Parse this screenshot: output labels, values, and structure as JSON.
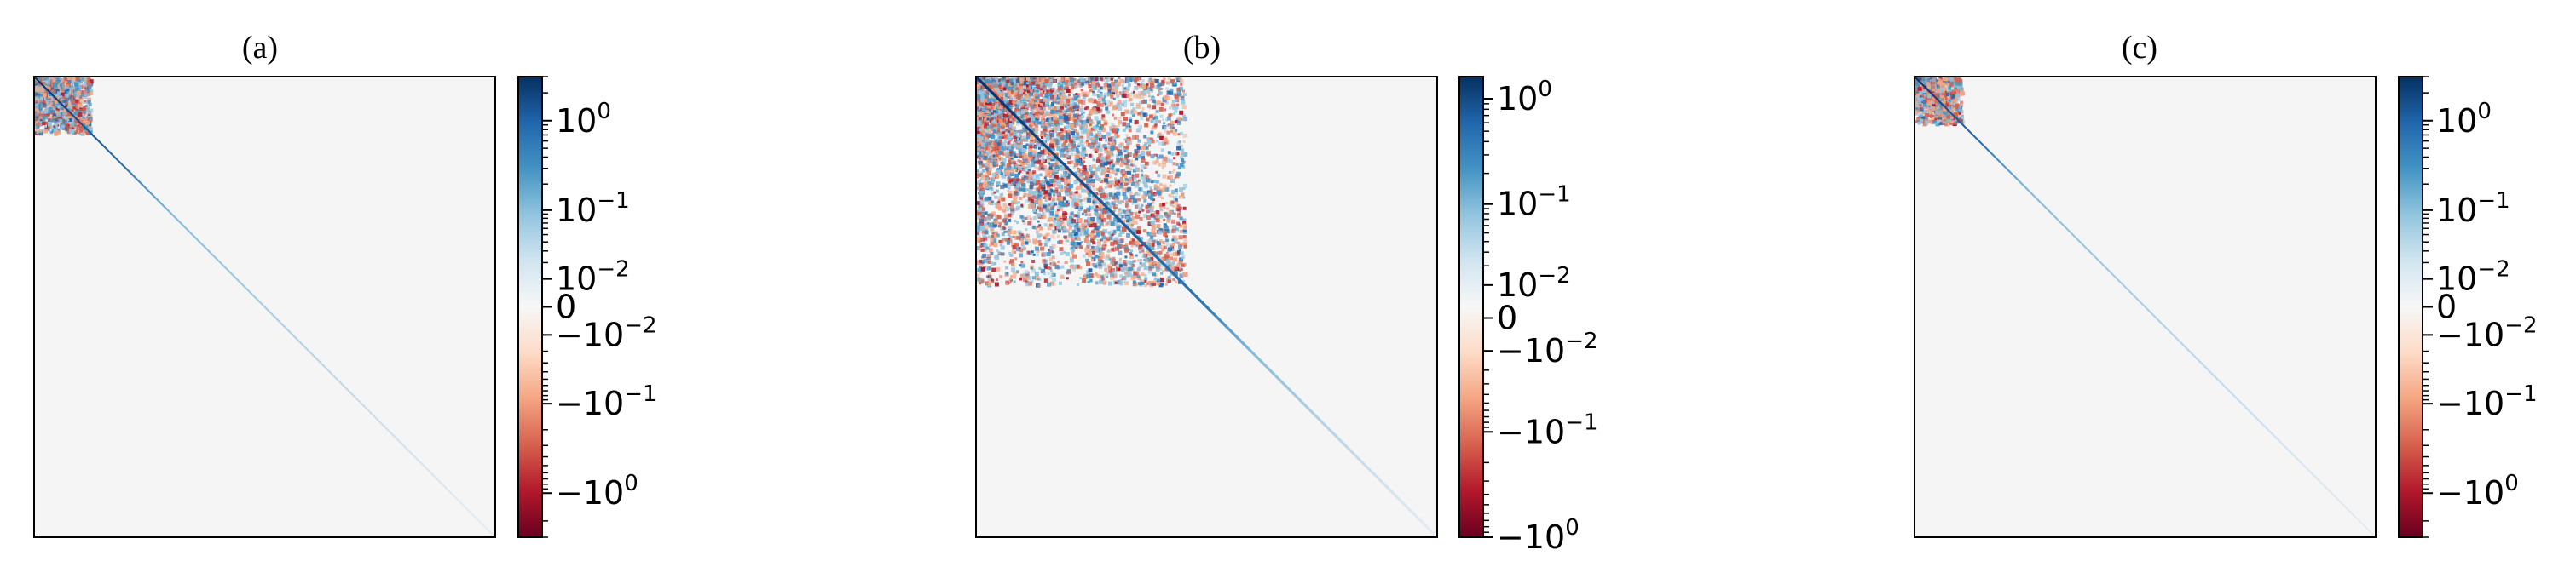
{
  "chart_data": [
    {
      "type": "heatmap",
      "title": "(a)",
      "xlabel": "",
      "ylabel": "",
      "x_ticks_shown": false,
      "y_ticks_shown": false,
      "color_scale": "symlog",
      "colormap": [
        "#67001f",
        "#b2182b",
        "#d6604d",
        "#f4a582",
        "#fddbc7",
        "#f7f7f7",
        "#d1e5f0",
        "#92c5de",
        "#4393c3",
        "#2166ac",
        "#053061"
      ],
      "colorbar_range": [
        -3.0,
        3.0
      ],
      "colorbar_ticks": [
        {
          "value": 1,
          "label": "10",
          "exp": "0"
        },
        {
          "value": 0.1,
          "label": "10",
          "exp": "−1"
        },
        {
          "value": 0.01,
          "label": "10",
          "exp": "−2"
        },
        {
          "value": 0,
          "label": "0",
          "exp": ""
        },
        {
          "value": -0.01,
          "label": "−10",
          "exp": "−2"
        },
        {
          "value": -0.1,
          "label": "−10",
          "exp": "−1"
        },
        {
          "value": -1,
          "label": "−10",
          "exp": "0"
        }
      ],
      "structure": "diagonal-dominant matrix; dense mixed-sign block in the top-left corner; diagonal fades toward bottom-right",
      "block_extent": 0.12,
      "diag_fade_start": 0.2
    },
    {
      "type": "heatmap",
      "title": "(b)",
      "xlabel": "",
      "ylabel": "",
      "x_ticks_shown": false,
      "y_ticks_shown": false,
      "color_scale": "symlog",
      "colormap": [
        "#67001f",
        "#b2182b",
        "#d6604d",
        "#f4a582",
        "#fddbc7",
        "#f7f7f7",
        "#d1e5f0",
        "#92c5de",
        "#4393c3",
        "#2166ac",
        "#053061"
      ],
      "colorbar_range": [
        -1.0,
        1.6
      ],
      "colorbar_ticks": [
        {
          "value": 1,
          "label": "10",
          "exp": "0"
        },
        {
          "value": 0.1,
          "label": "10",
          "exp": "−1"
        },
        {
          "value": 0.01,
          "label": "10",
          "exp": "−2"
        },
        {
          "value": 0,
          "label": "0",
          "exp": ""
        },
        {
          "value": -0.01,
          "label": "−10",
          "exp": "−2"
        },
        {
          "value": -0.1,
          "label": "−10",
          "exp": "−1"
        },
        {
          "value": -1,
          "label": "−10",
          "exp": "0"
        }
      ],
      "structure": "diagonal-dominant matrix; wide mixed-sign scattered region in top-left half; strong diagonal to about halfway then fades",
      "block_extent": 0.45,
      "diag_fade_start": 0.5
    },
    {
      "type": "heatmap",
      "title": "(c)",
      "xlabel": "",
      "ylabel": "",
      "x_ticks_shown": false,
      "y_ticks_shown": false,
      "color_scale": "symlog",
      "colormap": [
        "#67001f",
        "#b2182b",
        "#d6604d",
        "#f4a582",
        "#fddbc7",
        "#f7f7f7",
        "#d1e5f0",
        "#92c5de",
        "#4393c3",
        "#2166ac",
        "#053061"
      ],
      "colorbar_range": [
        -3.0,
        3.0
      ],
      "colorbar_ticks": [
        {
          "value": 1,
          "label": "10",
          "exp": "0"
        },
        {
          "value": 0.1,
          "label": "10",
          "exp": "−1"
        },
        {
          "value": 0.01,
          "label": "10",
          "exp": "−2"
        },
        {
          "value": 0,
          "label": "0",
          "exp": ""
        },
        {
          "value": -0.01,
          "label": "−10",
          "exp": "−2"
        },
        {
          "value": -0.1,
          "label": "−10",
          "exp": "−1"
        },
        {
          "value": -1,
          "label": "−10",
          "exp": "0"
        }
      ],
      "structure": "diagonal-dominant matrix; small mixed-sign block in the top-left corner; thin diagonal fading toward bottom-right",
      "block_extent": 0.1,
      "diag_fade_start": 0.15
    }
  ]
}
